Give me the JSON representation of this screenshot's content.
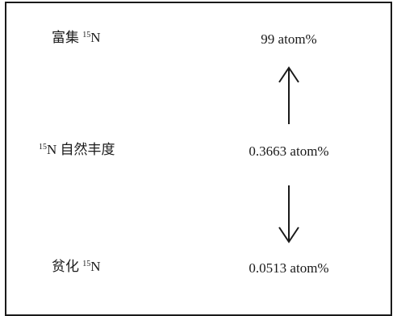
{
  "rows": [
    {
      "label_pre": "富集 ",
      "label_sup": "15",
      "label_post": "N",
      "value": "99 atom%"
    },
    {
      "label_pre": "",
      "label_sup": "15",
      "label_post": "N 自然丰度",
      "value": "0.3663 atom%"
    },
    {
      "label_pre": "贫化 ",
      "label_sup": "15",
      "label_post": "N",
      "value": "0.0513 atom%"
    }
  ],
  "arrows": [
    {
      "direction": "up"
    },
    {
      "direction": "down"
    }
  ]
}
